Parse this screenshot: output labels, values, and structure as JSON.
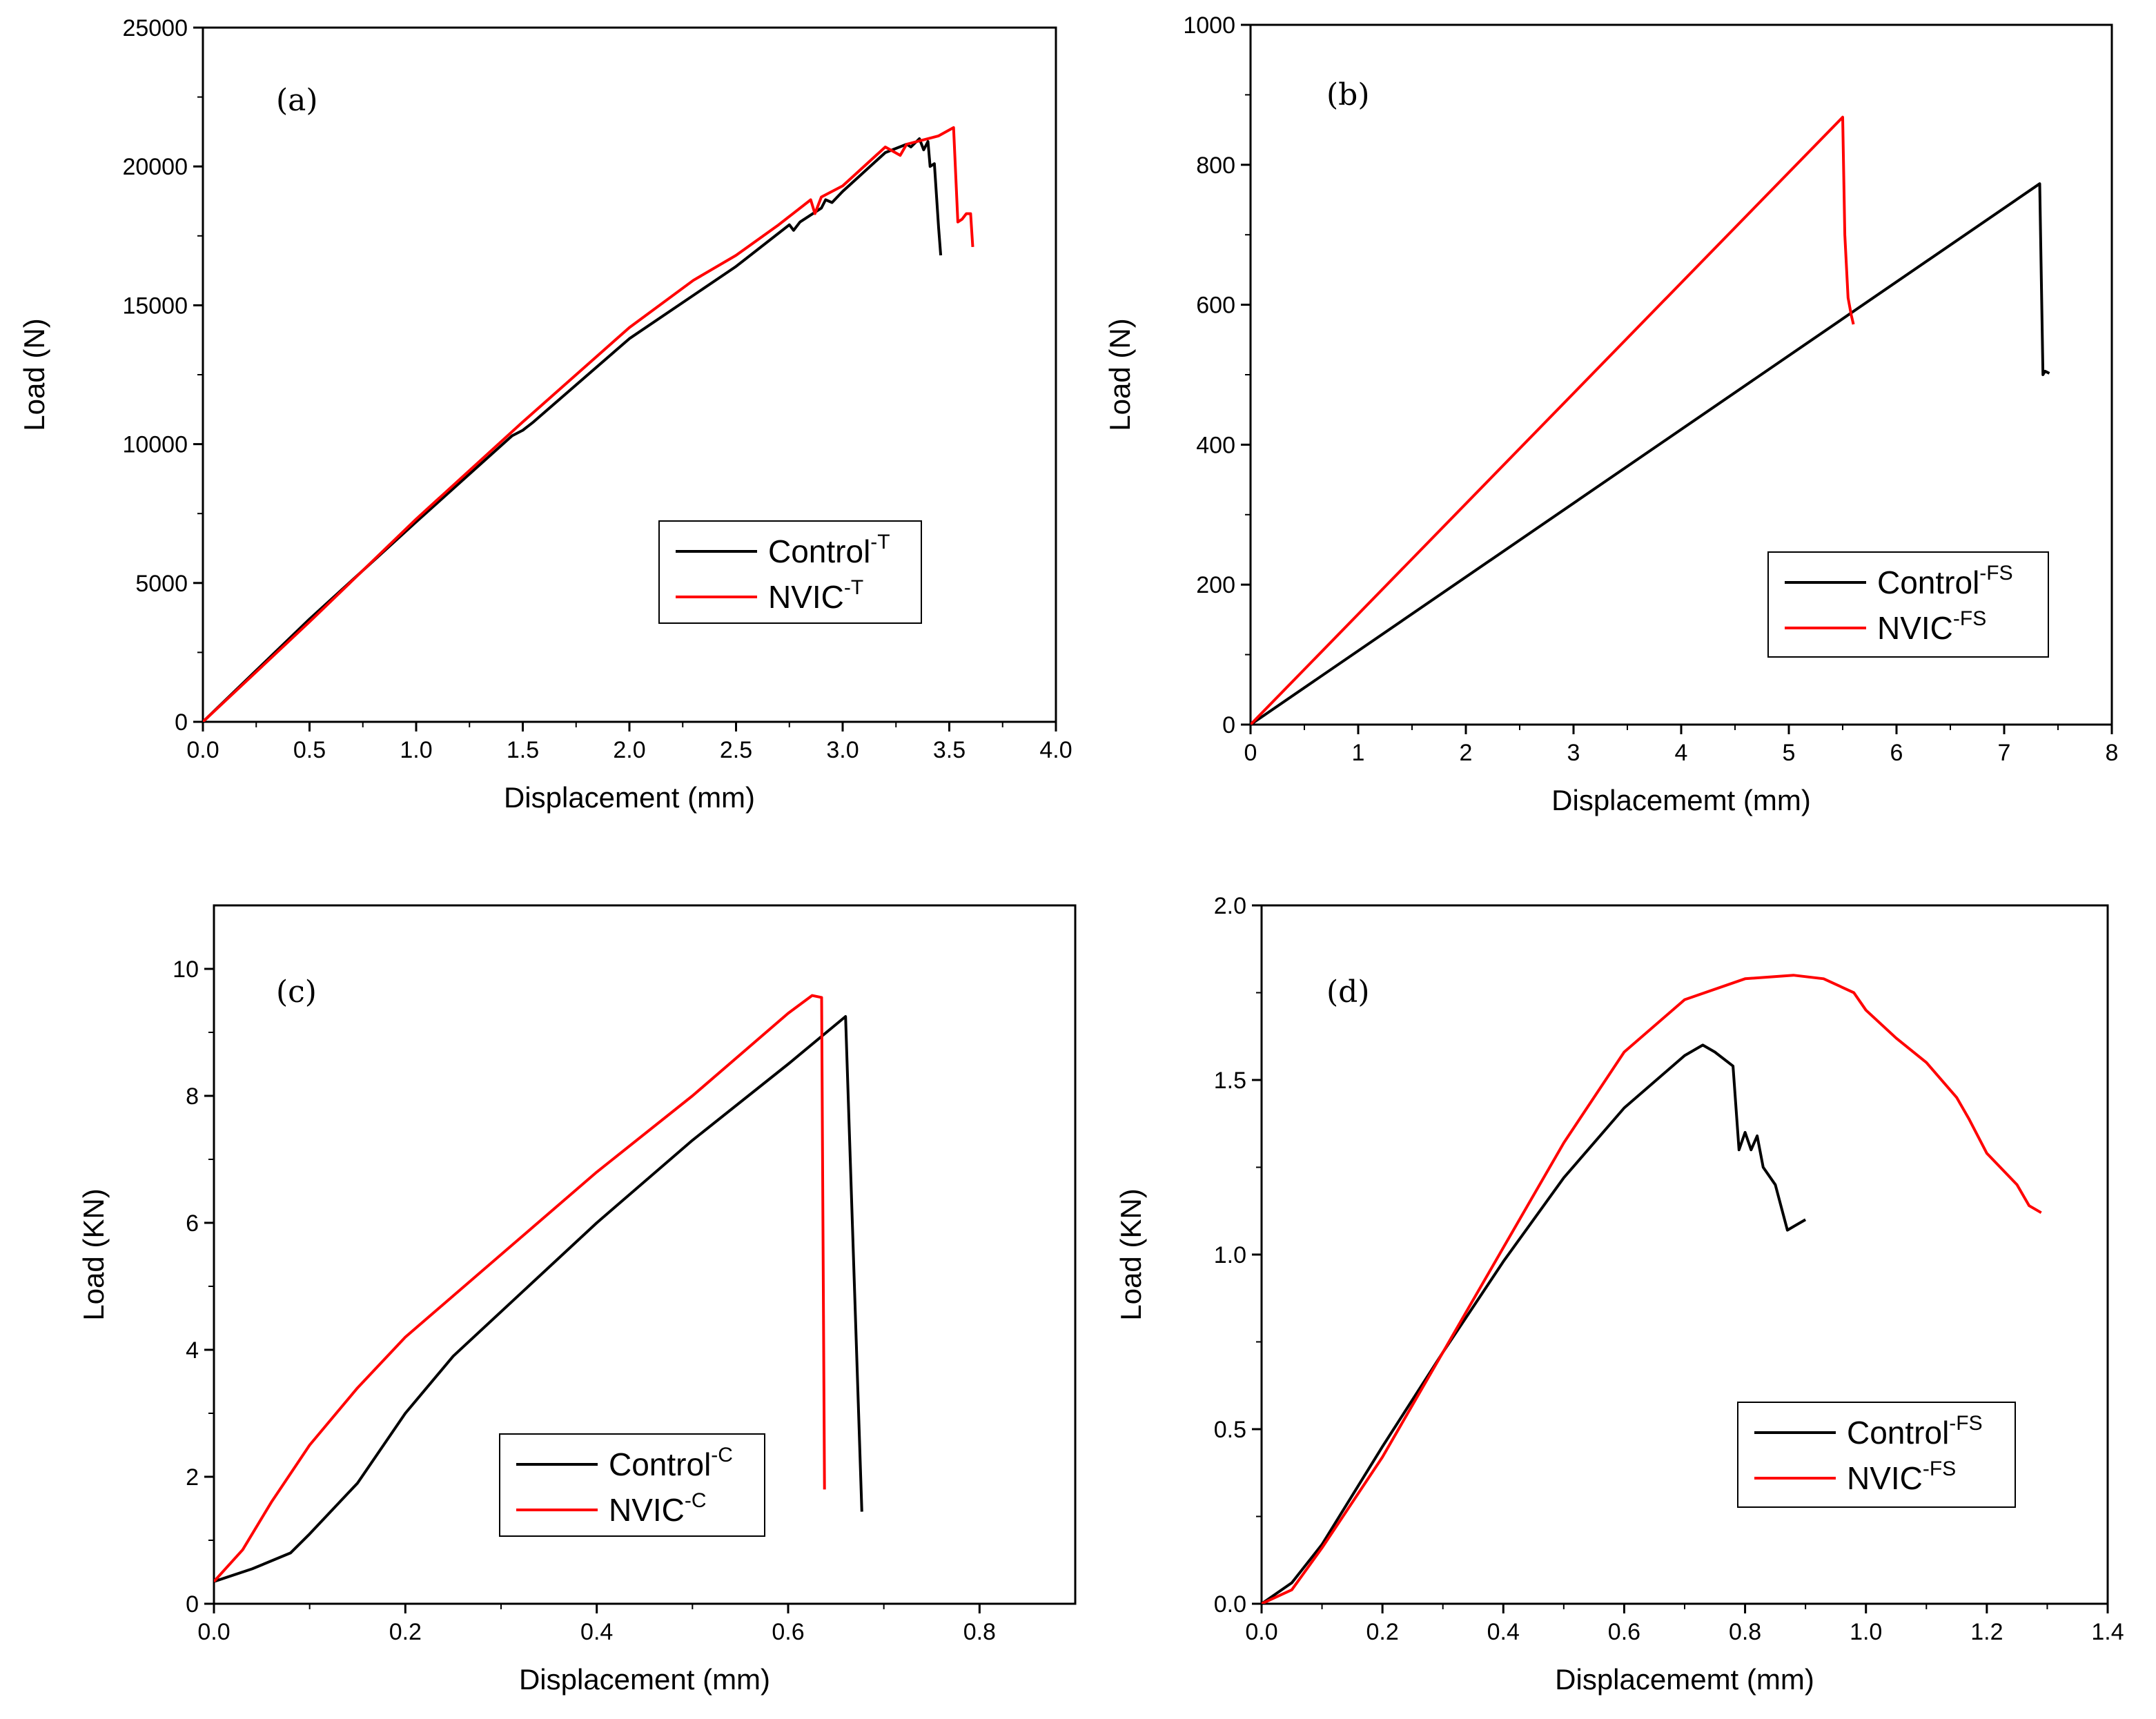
{
  "colors": {
    "control": "#000000",
    "nvic": "#ff0000",
    "axis": "#000000",
    "background": "#ffffff"
  },
  "chart_data": [
    {
      "id": "a",
      "type": "line",
      "panel_label": "(a)",
      "xlabel": "Displacement (mm)",
      "ylabel": "Load (N)",
      "xlim": [
        0,
        4.0
      ],
      "ylim": [
        0,
        25000
      ],
      "x_ticks": [
        0,
        0.5,
        1,
        1.5,
        2,
        2.5,
        3,
        3.5,
        4
      ],
      "x_tick_labels": [
        "0.0",
        "0.5",
        "1.0",
        "1.5",
        "2.0",
        "2.5",
        "3.0",
        "3.5",
        "4.0"
      ],
      "y_ticks": [
        0,
        5000,
        10000,
        15000,
        20000,
        25000
      ],
      "y_tick_labels": [
        "0",
        "5000",
        "10000",
        "15000",
        "20000",
        "25000"
      ],
      "legend_position": "lower-right",
      "series": [
        {
          "name": "Control",
          "superscript": "-T",
          "color": "#000000",
          "x": [
            0,
            0.5,
            1.0,
            1.45,
            1.5,
            1.55,
            2.0,
            2.5,
            2.75,
            2.77,
            2.8,
            2.9,
            2.92,
            2.95,
            3.0,
            3.2,
            3.3,
            3.32,
            3.36,
            3.38,
            3.4,
            3.41,
            3.43,
            3.45,
            3.46
          ],
          "y": [
            0,
            3700,
            7200,
            10300,
            10500,
            10800,
            13800,
            16400,
            17900,
            17700,
            18000,
            18500,
            18800,
            18700,
            19100,
            20500,
            20800,
            20700,
            21000,
            20600,
            20900,
            20000,
            20100,
            17800,
            16800
          ]
        },
        {
          "name": "NVIC",
          "superscript": "-T",
          "color": "#ff0000",
          "x": [
            0,
            0.5,
            1.0,
            1.5,
            2.0,
            2.3,
            2.5,
            2.7,
            2.85,
            2.87,
            2.9,
            3.0,
            3.2,
            3.27,
            3.3,
            3.45,
            3.52,
            3.54,
            3.56,
            3.58,
            3.6,
            3.61
          ],
          "y": [
            0,
            3600,
            7300,
            10800,
            14200,
            15900,
            16800,
            17900,
            18800,
            18300,
            18900,
            19300,
            20700,
            20400,
            20800,
            21100,
            21400,
            18000,
            18100,
            18300,
            18300,
            17100
          ]
        }
      ]
    },
    {
      "id": "b",
      "type": "line",
      "panel_label": "(b)",
      "xlabel": "Displacememt (mm)",
      "ylabel": "Load (N)",
      "xlim": [
        0,
        8
      ],
      "ylim": [
        0,
        1000
      ],
      "x_ticks": [
        0,
        1,
        2,
        3,
        4,
        5,
        6,
        7,
        8
      ],
      "x_tick_labels": [
        "0",
        "1",
        "2",
        "3",
        "4",
        "5",
        "6",
        "7",
        "8"
      ],
      "y_ticks": [
        0,
        200,
        400,
        600,
        800,
        1000
      ],
      "y_tick_labels": [
        "0",
        "200",
        "400",
        "600",
        "800",
        "1000"
      ],
      "legend_position": "lower-right",
      "series": [
        {
          "name": "Control",
          "superscript": "-FS",
          "color": "#000000",
          "x": [
            0,
            7.33,
            7.36,
            7.38,
            7.42
          ],
          "y": [
            0,
            773,
            500,
            505,
            502
          ]
        },
        {
          "name": "NVIC",
          "superscript": "-FS",
          "color": "#ff0000",
          "x": [
            0,
            5.5,
            5.52,
            5.55,
            5.58,
            5.6
          ],
          "y": [
            0,
            868,
            700,
            610,
            585,
            572
          ]
        }
      ]
    },
    {
      "id": "c",
      "type": "line",
      "panel_label": "(c)",
      "xlabel": "Displacement (mm)",
      "ylabel": "Load (KN)",
      "xlim": [
        0,
        0.9
      ],
      "ylim": [
        0,
        11
      ],
      "x_ticks": [
        0,
        0.2,
        0.4,
        0.6,
        0.8
      ],
      "x_tick_labels": [
        "0.0",
        "0.2",
        "0.4",
        "0.6",
        "0.8"
      ],
      "y_ticks": [
        0,
        2,
        4,
        6,
        8,
        10
      ],
      "y_tick_labels": [
        "0",
        "2",
        "4",
        "6",
        "8",
        "10"
      ],
      "legend_position": "lower-center",
      "series": [
        {
          "name": "Control",
          "superscript": "-C",
          "color": "#000000",
          "x": [
            0,
            0.04,
            0.08,
            0.1,
            0.15,
            0.2,
            0.25,
            0.3,
            0.4,
            0.5,
            0.6,
            0.66,
            0.677
          ],
          "y": [
            0.35,
            0.55,
            0.8,
            1.1,
            1.9,
            3.0,
            3.9,
            4.6,
            6.0,
            7.3,
            8.5,
            9.25,
            1.45
          ]
        },
        {
          "name": "NVIC",
          "superscript": "-C",
          "color": "#ff0000",
          "x": [
            0,
            0.03,
            0.06,
            0.1,
            0.15,
            0.2,
            0.3,
            0.4,
            0.5,
            0.6,
            0.625,
            0.635,
            0.638
          ],
          "y": [
            0.35,
            0.85,
            1.6,
            2.5,
            3.4,
            4.2,
            5.5,
            6.8,
            8.0,
            9.3,
            9.58,
            9.55,
            1.8
          ]
        }
      ]
    },
    {
      "id": "d",
      "type": "line",
      "panel_label": "(d)",
      "xlabel": "Displacememt (mm)",
      "ylabel": "Load (KN)",
      "xlim": [
        0,
        1.4
      ],
      "ylim": [
        0,
        2.0
      ],
      "x_ticks": [
        0,
        0.2,
        0.4,
        0.6,
        0.8,
        1.0,
        1.2,
        1.4
      ],
      "x_tick_labels": [
        "0.0",
        "0.2",
        "0.4",
        "0.6",
        "0.8",
        "1.0",
        "1.2",
        "1.4"
      ],
      "y_ticks": [
        0,
        0.5,
        1.0,
        1.5,
        2.0
      ],
      "y_tick_labels": [
        "0.0",
        "0.5",
        "1.0",
        "1.5",
        "2.0"
      ],
      "legend_position": "lower-right",
      "series": [
        {
          "name": "Control",
          "superscript": "-FS",
          "color": "#000000",
          "x": [
            0,
            0.05,
            0.1,
            0.2,
            0.3,
            0.4,
            0.5,
            0.6,
            0.7,
            0.73,
            0.75,
            0.78,
            0.79,
            0.8,
            0.81,
            0.82,
            0.83,
            0.85,
            0.87,
            0.88,
            0.9
          ],
          "y": [
            0,
            0.06,
            0.17,
            0.45,
            0.72,
            0.98,
            1.22,
            1.42,
            1.57,
            1.6,
            1.58,
            1.54,
            1.3,
            1.35,
            1.3,
            1.34,
            1.25,
            1.2,
            1.07,
            1.08,
            1.1
          ]
        },
        {
          "name": "NVIC",
          "superscript": "-FS",
          "color": "#ff0000",
          "x": [
            0,
            0.05,
            0.1,
            0.2,
            0.3,
            0.4,
            0.5,
            0.6,
            0.7,
            0.8,
            0.88,
            0.93,
            0.98,
            1.0,
            1.05,
            1.1,
            1.15,
            1.17,
            1.2,
            1.25,
            1.27,
            1.29
          ],
          "y": [
            0,
            0.04,
            0.16,
            0.42,
            0.72,
            1.02,
            1.32,
            1.58,
            1.73,
            1.79,
            1.8,
            1.79,
            1.75,
            1.7,
            1.62,
            1.55,
            1.45,
            1.39,
            1.29,
            1.2,
            1.14,
            1.12
          ]
        }
      ]
    }
  ]
}
